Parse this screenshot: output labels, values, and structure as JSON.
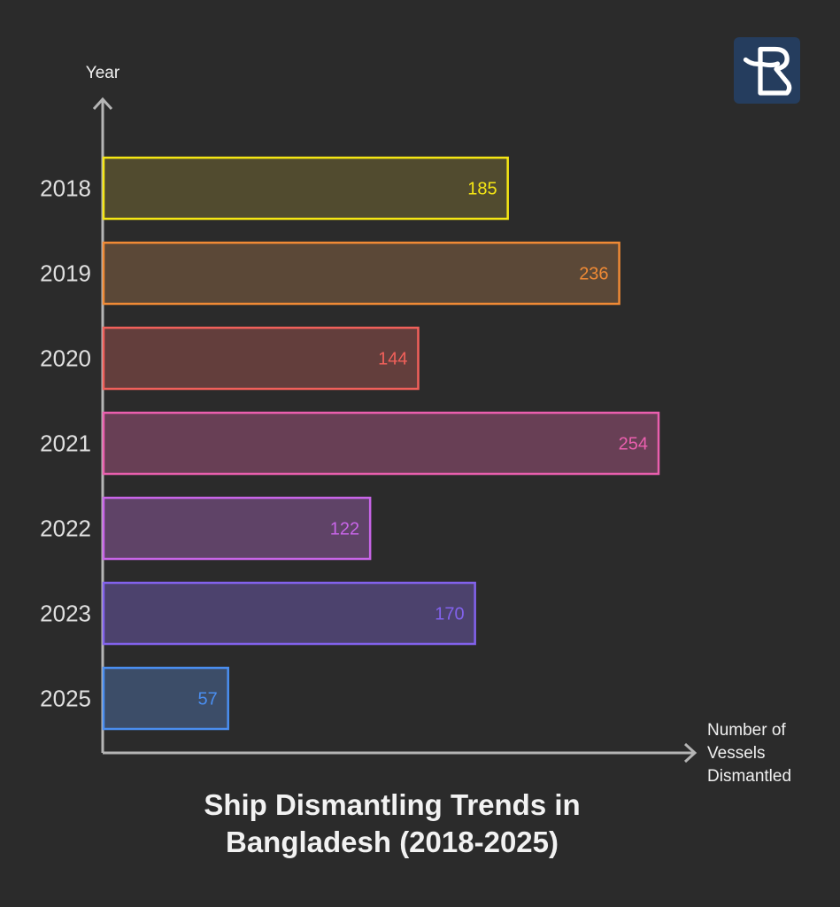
{
  "chart_data": {
    "type": "bar",
    "orientation": "horizontal",
    "title": "Ship Dismantling Trends in Bangladesh (2018-2025)",
    "title_lines": [
      "Ship Dismantling Trends in",
      "Bangladesh (2018-2025)"
    ],
    "ylabel": "Year",
    "xlabel": "Number of Vessels Dismantled",
    "xlabel_lines": [
      "Number of",
      "Vessels",
      "Dismantled"
    ],
    "categories": [
      "2018",
      "2019",
      "2020",
      "2021",
      "2022",
      "2023",
      "2025"
    ],
    "values": [
      185,
      236,
      144,
      254,
      122,
      170,
      57
    ],
    "bar_colors": [
      "#f5e614",
      "#f08a35",
      "#f0605a",
      "#ea5fae",
      "#c865e8",
      "#8262ec",
      "#4a8ef0"
    ],
    "fill_colors": [
      "#514b2f",
      "#5b4837",
      "#633e3c",
      "#683f55",
      "#5f4367",
      "#4c426d",
      "#3c4d68"
    ],
    "xlim": [
      0,
      254
    ],
    "grid": false,
    "legend": "none"
  },
  "logo": {
    "icon": "brand-logo-icon",
    "bg_color": "#253d5e"
  },
  "colors": {
    "background": "#2b2b2b",
    "axis": "#b5b5b5"
  }
}
